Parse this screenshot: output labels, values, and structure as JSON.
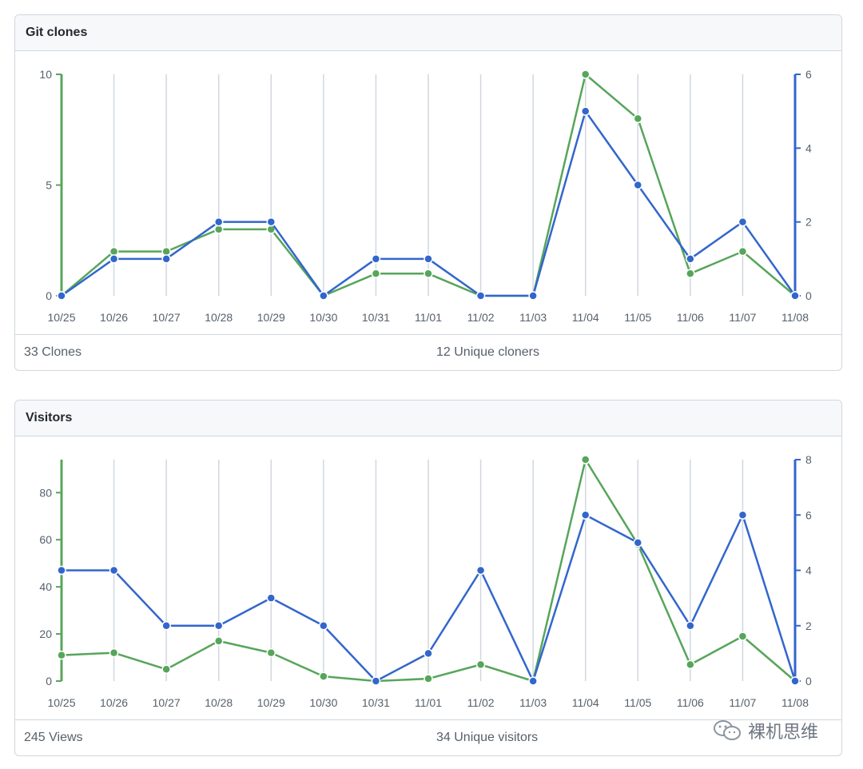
{
  "panels": [
    {
      "id": "clones",
      "title": "Git clones",
      "footer_left": "33 Clones",
      "footer_mid": "12 Unique cloners"
    },
    {
      "id": "visitors",
      "title": "Visitors",
      "footer_left": "245 Views",
      "footer_mid": "34 Unique visitors"
    }
  ],
  "watermark": {
    "text": "裸机思维",
    "icon": "wechat-icon"
  },
  "colors": {
    "green": "#57a55a",
    "blue": "#3366cc",
    "grid": "#d0d7de",
    "axis_text": "#57606a"
  },
  "chart_data": [
    {
      "type": "line",
      "title": "Git clones",
      "categories": [
        "10/25",
        "10/26",
        "10/27",
        "10/28",
        "10/29",
        "10/30",
        "10/31",
        "11/01",
        "11/02",
        "11/03",
        "11/04",
        "11/05",
        "11/06",
        "11/07",
        "11/08"
      ],
      "y_left": {
        "ylim": [
          0,
          10
        ],
        "ticks": [
          0,
          5,
          10
        ]
      },
      "y_right": {
        "ylim": [
          0,
          6
        ],
        "ticks": [
          0,
          2,
          4,
          6
        ]
      },
      "series": [
        {
          "axis": "left",
          "color": "#57a55a",
          "values": [
            0,
            2,
            2,
            3,
            3,
            0,
            1,
            1,
            0,
            0,
            10,
            8,
            1,
            2,
            0
          ]
        },
        {
          "axis": "right",
          "color": "#3366cc",
          "values": [
            0,
            1,
            1,
            2,
            2,
            0,
            1,
            1,
            0,
            0,
            5,
            3,
            1,
            2,
            0
          ]
        }
      ],
      "grid": true
    },
    {
      "type": "line",
      "title": "Visitors",
      "categories": [
        "10/25",
        "10/26",
        "10/27",
        "10/28",
        "10/29",
        "10/30",
        "10/31",
        "11/01",
        "11/02",
        "11/03",
        "11/04",
        "11/05",
        "11/06",
        "11/07",
        "11/08"
      ],
      "y_left": {
        "ylim": [
          0,
          94
        ],
        "ticks": [
          0,
          20,
          40,
          60,
          80
        ]
      },
      "y_right": {
        "ylim": [
          0,
          8
        ],
        "ticks": [
          0,
          2,
          4,
          6,
          8
        ]
      },
      "series": [
        {
          "axis": "left",
          "color": "#57a55a",
          "values": [
            11,
            12,
            5,
            17,
            12,
            2,
            0,
            1,
            7,
            0,
            94,
            58,
            7,
            19,
            0
          ]
        },
        {
          "axis": "right",
          "color": "#3366cc",
          "values": [
            4,
            4,
            2,
            2,
            3,
            2,
            0,
            1,
            4,
            0,
            6,
            5,
            2,
            6,
            0
          ]
        }
      ],
      "grid": true
    }
  ]
}
